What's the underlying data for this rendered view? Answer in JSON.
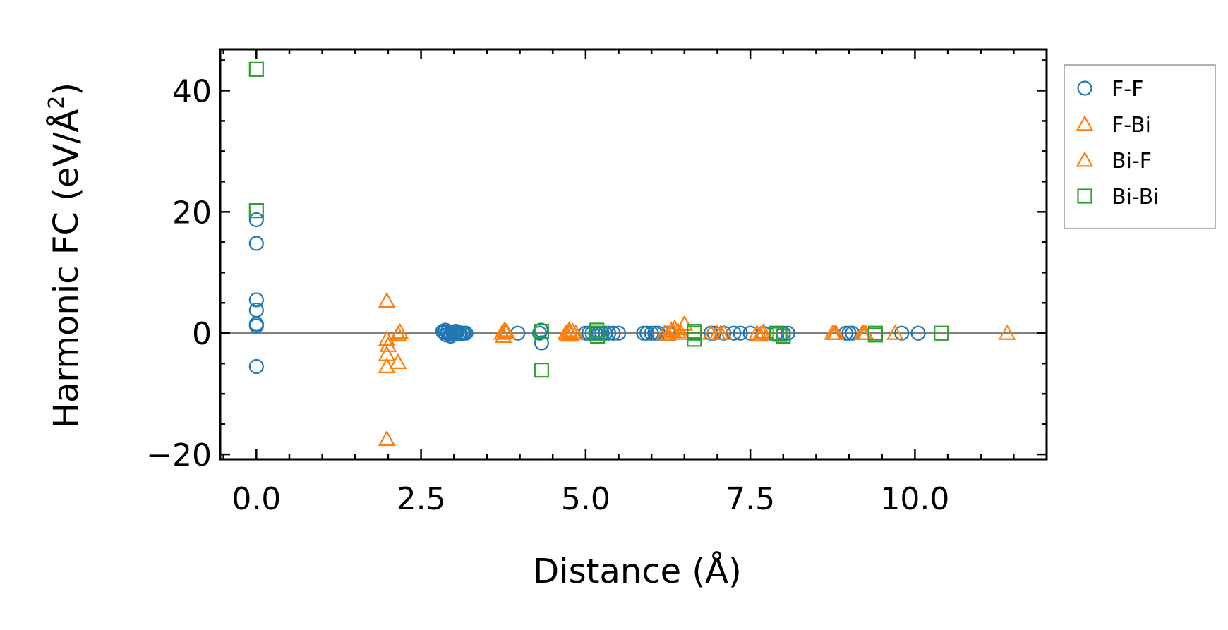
{
  "chart_data": {
    "type": "scatter",
    "xlabel": "Distance (Å)",
    "ylabel_main": "Harmonic FC (eV/Å",
    "ylabel_sup": "2",
    "ylabel_close": ")",
    "xlim": [
      -0.55,
      12.0
    ],
    "ylim": [
      -20.8,
      46.8
    ],
    "xticks": [
      0.0,
      2.5,
      5.0,
      7.5,
      10.0
    ],
    "xtick_labels": [
      "0.0",
      "2.5",
      "5.0",
      "7.5",
      "10.0"
    ],
    "yticks": [
      -20,
      0,
      20,
      40
    ],
    "ytick_labels": [
      "−20",
      "0",
      "20",
      "40"
    ],
    "zero_line": true,
    "legend_position": "outside-right-top",
    "series": [
      {
        "name": "F-F",
        "marker": "circle",
        "color": "#1f77b4",
        "x": [
          0.0,
          0.0,
          0.0,
          0.0,
          0.0,
          0.0,
          0.0,
          2.83,
          2.85,
          2.88,
          2.9,
          2.93,
          2.95,
          2.98,
          3.0,
          3.02,
          3.05,
          3.08,
          3.1,
          3.13,
          3.15,
          3.18,
          2.87,
          2.95,
          3.03,
          3.97,
          4.3,
          4.33,
          4.32,
          5.0,
          5.05,
          5.1,
          5.15,
          5.2,
          5.25,
          5.3,
          5.35,
          5.42,
          5.5,
          5.88,
          5.93,
          6.0,
          6.05,
          6.1,
          6.25,
          6.9,
          6.95,
          7.1,
          7.25,
          7.35,
          7.5,
          7.7,
          7.9,
          8.0,
          8.07,
          8.95,
          9.0,
          9.05,
          9.8,
          10.05
        ],
        "y": [
          18.7,
          14.8,
          5.5,
          3.8,
          1.5,
          1.2,
          -5.5,
          0.3,
          0.1,
          -0.3,
          0.2,
          0.0,
          -0.2,
          0.1,
          0.0,
          -0.1,
          0.2,
          0.0,
          -0.1,
          0.0,
          0.0,
          0.0,
          0.5,
          -0.5,
          0.3,
          0.0,
          0.0,
          -1.6,
          0.5,
          0.0,
          0.0,
          0.0,
          0.0,
          0.0,
          0.0,
          0.0,
          0.0,
          0.0,
          0.0,
          0.0,
          0.0,
          0.0,
          0.0,
          0.0,
          0.0,
          0.0,
          0.0,
          0.0,
          0.0,
          0.0,
          0.0,
          0.0,
          0.0,
          0.0,
          0.0,
          0.0,
          0.0,
          0.0,
          0.0,
          0.0
        ]
      },
      {
        "name": "F-Bi",
        "marker": "triangle",
        "color": "#ff7f0e",
        "x": [
          1.98,
          1.98,
          1.98,
          1.98,
          1.98,
          2.15,
          2.15,
          3.73,
          3.75,
          3.77,
          3.8,
          4.7,
          4.72,
          4.75,
          4.78,
          4.8,
          4.85,
          6.2,
          6.25,
          6.3,
          6.35,
          6.4,
          6.45,
          6.5,
          6.9,
          7.0,
          7.1,
          7.6,
          7.65,
          7.7,
          8.75,
          8.8,
          9.2,
          9.25,
          9.7,
          11.4
        ],
        "y": [
          5.3,
          -1.0,
          -3.5,
          -5.5,
          -17.5,
          -0.2,
          -4.8,
          0.0,
          -0.5,
          0.5,
          0.2,
          0.0,
          -0.3,
          0.5,
          -0.2,
          0.3,
          0.0,
          0.0,
          -0.2,
          0.5,
          0.8,
          0.3,
          0.0,
          1.5,
          0.0,
          0.0,
          0.0,
          0.0,
          -0.3,
          0.2,
          0.0,
          0.0,
          0.0,
          0.0,
          0.0,
          0.0
        ]
      },
      {
        "name": "Bi-F",
        "marker": "triangle",
        "color": "#ff7f0e",
        "x": [
          2.0,
          2.18,
          3.78,
          4.76,
          6.33,
          7.05,
          7.68,
          8.78,
          9.22
        ],
        "y": [
          -2.0,
          0.2,
          0.3,
          0.2,
          0.3,
          0.0,
          0.0,
          0.0,
          0.0
        ]
      },
      {
        "name": "Bi-Bi",
        "marker": "square",
        "color": "#2ca02c",
        "x": [
          0.0,
          0.0,
          4.33,
          4.33,
          5.17,
          5.17,
          5.18,
          6.65,
          6.65,
          6.65,
          7.9,
          7.95,
          8.0,
          9.4,
          9.4,
          10.4
        ],
        "y": [
          43.5,
          20.2,
          0.3,
          -6.1,
          0.5,
          0.0,
          -0.5,
          0.3,
          0.0,
          -1.0,
          0.0,
          -0.2,
          -0.5,
          0.0,
          -0.3,
          0.0
        ]
      }
    ]
  }
}
